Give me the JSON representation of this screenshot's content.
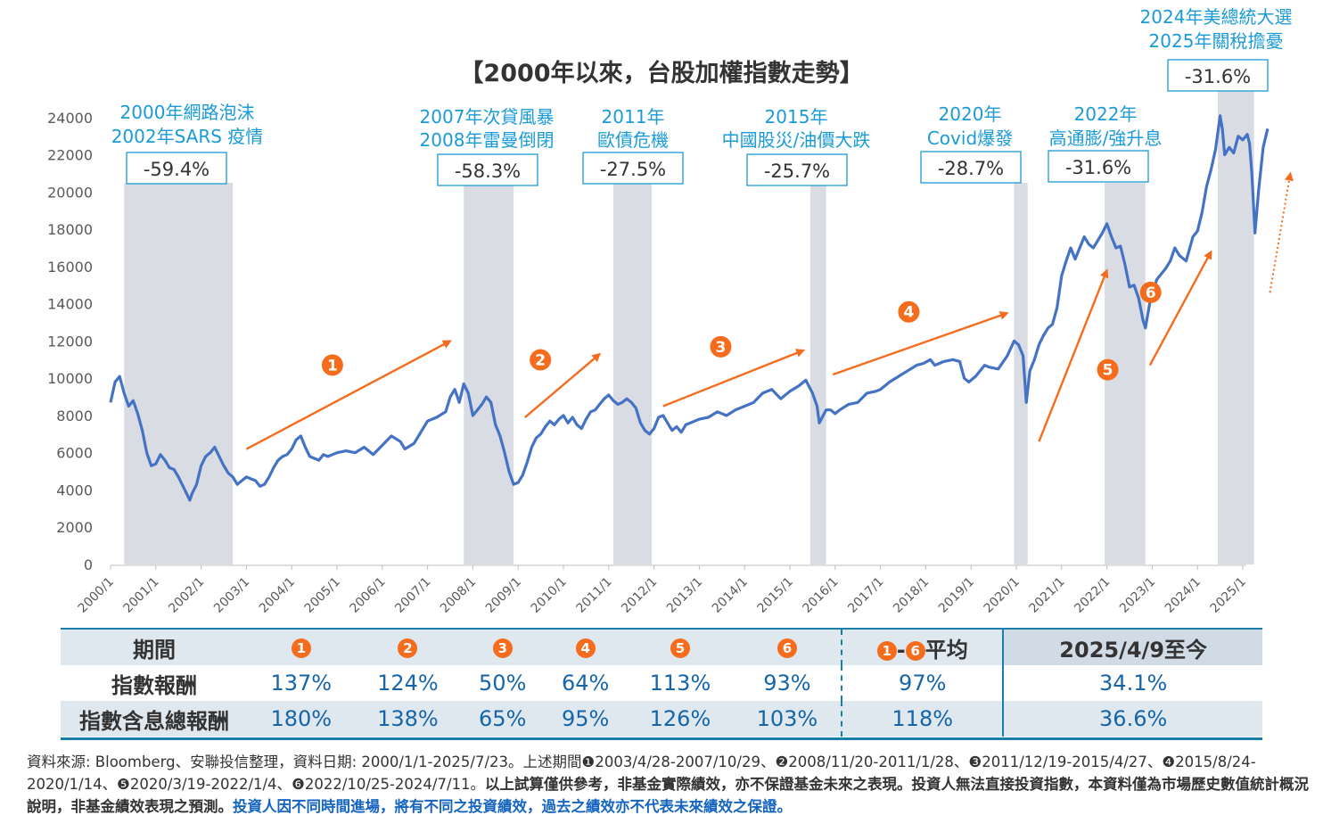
{
  "chart_data": {
    "type": "line",
    "title": "【2000年以來，台股加權指數走勢】",
    "ylim": [
      0,
      24000
    ],
    "yticks": [
      "0",
      "2000",
      "4000",
      "6000",
      "8000",
      "10000",
      "12000",
      "14000",
      "16000",
      "18000",
      "20000",
      "22000",
      "24000"
    ],
    "xticks": [
      "2000/1",
      "2001/1",
      "2002/1",
      "2003/1",
      "2004/1",
      "2005/1",
      "2006/1",
      "2007/1",
      "2008/1",
      "2009/1",
      "2010/1",
      "2011/1",
      "2012/1",
      "2013/1",
      "2014/1",
      "2015/1",
      "2016/1",
      "2017/1",
      "2018/1",
      "2019/1",
      "2020/1",
      "2021/1",
      "2022/1",
      "2023/1",
      "2024/1",
      "2025/1"
    ],
    "series": [
      {
        "color": "#4472c4",
        "points": [
          [
            2000.0,
            8700
          ],
          [
            2000.1,
            9800
          ],
          [
            2000.2,
            10100
          ],
          [
            2000.3,
            9200
          ],
          [
            2000.4,
            8500
          ],
          [
            2000.5,
            8800
          ],
          [
            2000.6,
            8100
          ],
          [
            2000.7,
            7200
          ],
          [
            2000.8,
            6000
          ],
          [
            2000.9,
            5300
          ],
          [
            2001.0,
            5400
          ],
          [
            2001.1,
            5900
          ],
          [
            2001.2,
            5600
          ],
          [
            2001.3,
            5200
          ],
          [
            2001.4,
            5100
          ],
          [
            2001.5,
            4700
          ],
          [
            2001.6,
            4200
          ],
          [
            2001.7,
            3700
          ],
          [
            2001.75,
            3450
          ],
          [
            2001.8,
            3800
          ],
          [
            2001.9,
            4300
          ],
          [
            2002.0,
            5300
          ],
          [
            2002.1,
            5800
          ],
          [
            2002.2,
            6000
          ],
          [
            2002.3,
            6300
          ],
          [
            2002.4,
            5800
          ],
          [
            2002.5,
            5300
          ],
          [
            2002.6,
            4900
          ],
          [
            2002.7,
            4700
          ],
          [
            2002.8,
            4300
          ],
          [
            2002.9,
            4500
          ],
          [
            2003.0,
            4700
          ],
          [
            2003.1,
            4600
          ],
          [
            2003.2,
            4500
          ],
          [
            2003.3,
            4200
          ],
          [
            2003.4,
            4300
          ],
          [
            2003.5,
            4700
          ],
          [
            2003.6,
            5200
          ],
          [
            2003.7,
            5600
          ],
          [
            2003.8,
            5800
          ],
          [
            2003.9,
            5900
          ],
          [
            2004.0,
            6200
          ],
          [
            2004.1,
            6700
          ],
          [
            2004.2,
            6900
          ],
          [
            2004.3,
            6300
          ],
          [
            2004.4,
            5800
          ],
          [
            2004.5,
            5700
          ],
          [
            2004.6,
            5600
          ],
          [
            2004.7,
            5900
          ],
          [
            2004.8,
            5800
          ],
          [
            2004.9,
            5900
          ],
          [
            2005.0,
            6000
          ],
          [
            2005.2,
            6100
          ],
          [
            2005.4,
            6000
          ],
          [
            2005.6,
            6300
          ],
          [
            2005.8,
            5900
          ],
          [
            2006.0,
            6400
          ],
          [
            2006.2,
            6900
          ],
          [
            2006.4,
            6600
          ],
          [
            2006.5,
            6200
          ],
          [
            2006.7,
            6500
          ],
          [
            2006.9,
            7300
          ],
          [
            2007.0,
            7700
          ],
          [
            2007.2,
            7900
          ],
          [
            2007.4,
            8200
          ],
          [
            2007.5,
            9000
          ],
          [
            2007.6,
            9400
          ],
          [
            2007.7,
            8700
          ],
          [
            2007.8,
            9700
          ],
          [
            2007.9,
            9200
          ],
          [
            2008.0,
            8000
          ],
          [
            2008.1,
            8300
          ],
          [
            2008.2,
            8600
          ],
          [
            2008.3,
            9000
          ],
          [
            2008.4,
            8700
          ],
          [
            2008.5,
            7500
          ],
          [
            2008.6,
            6900
          ],
          [
            2008.7,
            6000
          ],
          [
            2008.8,
            5000
          ],
          [
            2008.9,
            4300
          ],
          [
            2009.0,
            4400
          ],
          [
            2009.1,
            4800
          ],
          [
            2009.2,
            5500
          ],
          [
            2009.3,
            6300
          ],
          [
            2009.4,
            6800
          ],
          [
            2009.5,
            7000
          ],
          [
            2009.6,
            7400
          ],
          [
            2009.7,
            7700
          ],
          [
            2009.8,
            7500
          ],
          [
            2009.9,
            7800
          ],
          [
            2010.0,
            8000
          ],
          [
            2010.1,
            7600
          ],
          [
            2010.2,
            7900
          ],
          [
            2010.3,
            7500
          ],
          [
            2010.4,
            7300
          ],
          [
            2010.5,
            7800
          ],
          [
            2010.6,
            8200
          ],
          [
            2010.7,
            8300
          ],
          [
            2010.8,
            8600
          ],
          [
            2010.9,
            8900
          ],
          [
            2011.0,
            9100
          ],
          [
            2011.1,
            8800
          ],
          [
            2011.2,
            8600
          ],
          [
            2011.3,
            8700
          ],
          [
            2011.4,
            8900
          ],
          [
            2011.5,
            8700
          ],
          [
            2011.6,
            8400
          ],
          [
            2011.7,
            7600
          ],
          [
            2011.8,
            7200
          ],
          [
            2011.9,
            7000
          ],
          [
            2012.0,
            7300
          ],
          [
            2012.1,
            7900
          ],
          [
            2012.2,
            8000
          ],
          [
            2012.3,
            7600
          ],
          [
            2012.4,
            7200
          ],
          [
            2012.5,
            7400
          ],
          [
            2012.6,
            7100
          ],
          [
            2012.7,
            7500
          ],
          [
            2012.8,
            7600
          ],
          [
            2012.9,
            7700
          ],
          [
            2013.0,
            7800
          ],
          [
            2013.2,
            7900
          ],
          [
            2013.4,
            8200
          ],
          [
            2013.6,
            8000
          ],
          [
            2013.8,
            8300
          ],
          [
            2014.0,
            8500
          ],
          [
            2014.2,
            8700
          ],
          [
            2014.4,
            9200
          ],
          [
            2014.6,
            9400
          ],
          [
            2014.8,
            8900
          ],
          [
            2015.0,
            9300
          ],
          [
            2015.2,
            9600
          ],
          [
            2015.35,
            9900
          ],
          [
            2015.5,
            9200
          ],
          [
            2015.6,
            8500
          ],
          [
            2015.65,
            7600
          ],
          [
            2015.8,
            8300
          ],
          [
            2015.9,
            8300
          ],
          [
            2016.0,
            8100
          ],
          [
            2016.1,
            8300
          ],
          [
            2016.3,
            8600
          ],
          [
            2016.5,
            8700
          ],
          [
            2016.7,
            9200
          ],
          [
            2016.9,
            9300
          ],
          [
            2017.0,
            9400
          ],
          [
            2017.2,
            9800
          ],
          [
            2017.4,
            10100
          ],
          [
            2017.6,
            10400
          ],
          [
            2017.8,
            10700
          ],
          [
            2017.95,
            10800
          ],
          [
            2018.1,
            11000
          ],
          [
            2018.2,
            10700
          ],
          [
            2018.4,
            10900
          ],
          [
            2018.6,
            11000
          ],
          [
            2018.75,
            10900
          ],
          [
            2018.85,
            10000
          ],
          [
            2018.95,
            9800
          ],
          [
            2019.1,
            10100
          ],
          [
            2019.3,
            10700
          ],
          [
            2019.4,
            10600
          ],
          [
            2019.6,
            10500
          ],
          [
            2019.8,
            11200
          ],
          [
            2019.95,
            12000
          ],
          [
            2020.05,
            11800
          ],
          [
            2020.15,
            11200
          ],
          [
            2020.22,
            8700
          ],
          [
            2020.3,
            10400
          ],
          [
            2020.4,
            11000
          ],
          [
            2020.5,
            11800
          ],
          [
            2020.6,
            12300
          ],
          [
            2020.7,
            12700
          ],
          [
            2020.8,
            12900
          ],
          [
            2020.9,
            13800
          ],
          [
            2021.0,
            15500
          ],
          [
            2021.1,
            16300
          ],
          [
            2021.2,
            17000
          ],
          [
            2021.3,
            16400
          ],
          [
            2021.4,
            17000
          ],
          [
            2021.5,
            17600
          ],
          [
            2021.6,
            17200
          ],
          [
            2021.7,
            17000
          ],
          [
            2021.8,
            17400
          ],
          [
            2021.9,
            17800
          ],
          [
            2022.0,
            18300
          ],
          [
            2022.1,
            17600
          ],
          [
            2022.2,
            17000
          ],
          [
            2022.3,
            17100
          ],
          [
            2022.4,
            16100
          ],
          [
            2022.5,
            14900
          ],
          [
            2022.6,
            15000
          ],
          [
            2022.7,
            14300
          ],
          [
            2022.8,
            13100
          ],
          [
            2022.85,
            12700
          ],
          [
            2022.95,
            14100
          ],
          [
            2023.1,
            15300
          ],
          [
            2023.3,
            15900
          ],
          [
            2023.4,
            16300
          ],
          [
            2023.5,
            17000
          ],
          [
            2023.6,
            16600
          ],
          [
            2023.75,
            16300
          ],
          [
            2023.9,
            17600
          ],
          [
            2024.0,
            17900
          ],
          [
            2024.1,
            18900
          ],
          [
            2024.2,
            20300
          ],
          [
            2024.3,
            21200
          ],
          [
            2024.4,
            22300
          ],
          [
            2024.5,
            24100
          ],
          [
            2024.55,
            23400
          ],
          [
            2024.6,
            22000
          ],
          [
            2024.7,
            22400
          ],
          [
            2024.8,
            22100
          ],
          [
            2024.9,
            23000
          ],
          [
            2025.0,
            22800
          ],
          [
            2025.1,
            23100
          ],
          [
            2025.15,
            22600
          ],
          [
            2025.2,
            21000
          ],
          [
            2025.27,
            17800
          ],
          [
            2025.35,
            20100
          ],
          [
            2025.45,
            22400
          ],
          [
            2025.55,
            23400
          ]
        ]
      }
    ],
    "drawdown_periods": [
      {
        "range": [
          2000.3,
          2002.7
        ],
        "label_lines": [
          "2000年網路泡沫",
          "2002年SARS 疫情"
        ],
        "value": "-59.4%"
      },
      {
        "range": [
          2007.8,
          2008.9
        ],
        "label_lines": [
          "2007年次貸風暴",
          "2008年雷曼倒閉"
        ],
        "value": "-58.3%"
      },
      {
        "range": [
          2011.1,
          2011.95
        ],
        "label_lines": [
          "2011年",
          "歐債危機"
        ],
        "value": "-27.5%"
      },
      {
        "range": [
          2015.45,
          2015.8
        ],
        "label_lines": [
          "2015年",
          "中國股災/油價大跌"
        ],
        "value": "-25.7%"
      },
      {
        "range": [
          2019.95,
          2020.25
        ],
        "label_lines": [
          "2020年",
          "Covid爆發"
        ],
        "value": "-28.7%"
      },
      {
        "range": [
          2021.95,
          2022.85
        ],
        "label_lines": [
          "2022年",
          "高通膨/強升息"
        ],
        "value": "-31.6%"
      },
      {
        "range": [
          2024.45,
          2025.25
        ],
        "label_lines": [
          "2024年美總統大選",
          "2025年關稅擔憂"
        ],
        "value": "-31.6%"
      }
    ],
    "phase_arrows": [
      {
        "n": "1",
        "from": [
          2003.0,
          6200
        ],
        "to": [
          2007.5,
          12000
        ]
      },
      {
        "n": "2",
        "from": [
          2009.15,
          7900
        ],
        "to": [
          2010.8,
          11300
        ]
      },
      {
        "n": "3",
        "from": [
          2012.2,
          8500
        ],
        "to": [
          2015.3,
          11500
        ]
      },
      {
        "n": "4",
        "from": [
          2015.95,
          10200
        ],
        "to": [
          2019.8,
          13500
        ]
      },
      {
        "n": "5",
        "from": [
          2020.5,
          6600
        ],
        "to": [
          2022.0,
          15800
        ]
      },
      {
        "n": "6",
        "from": [
          2022.95,
          10700
        ],
        "to": [
          2024.3,
          16800
        ]
      }
    ],
    "forecast_arrow": {
      "from": [
        2025.6,
        14600
      ],
      "to": [
        2026.05,
        21000
      ]
    },
    "colors": {
      "line": "#4472c4",
      "shade": "#d9dde3",
      "accent": "#f46c1c",
      "label": "#1a9bd7",
      "axis": "#595959"
    }
  },
  "table": {
    "header": [
      "期間",
      "❶",
      "❷",
      "❸",
      "❹",
      "❺",
      "❻",
      "❶-❻平均",
      "2025/4/9至今"
    ],
    "rows": [
      {
        "label": "指數報酬",
        "values": [
          "137%",
          "124%",
          "50%",
          "64%",
          "113%",
          "93%",
          "97%",
          "34.1%"
        ]
      },
      {
        "label": "指數含息總報酬",
        "values": [
          "180%",
          "138%",
          "65%",
          "95%",
          "126%",
          "103%",
          "118%",
          "36.6%"
        ]
      }
    ]
  },
  "footnote": {
    "part1": "資料來源: Bloomberg、安聯投信整理，資料日期: 2000/1/1-2025/7/23。上述期間❶2003/4/28-2007/10/29、❷2008/11/20-2011/1/28、❸2011/12/19-2015/4/27、❹2015/8/24-2020/1/14、❺2020/3/19-2022/1/4、❻2022/10/25-2024/7/11。",
    "part2": "以上試算僅供參考，非基金實際績效，亦不保證基金未來之表現。投資人無法直接投資指數，本資料僅為市場歷史數值統計概況說明，非基金績效表現之預測。",
    "part3": "投資人因不同時間進場，將有不同之投資績效，過去之績效亦不代表未來績效之保證。"
  }
}
